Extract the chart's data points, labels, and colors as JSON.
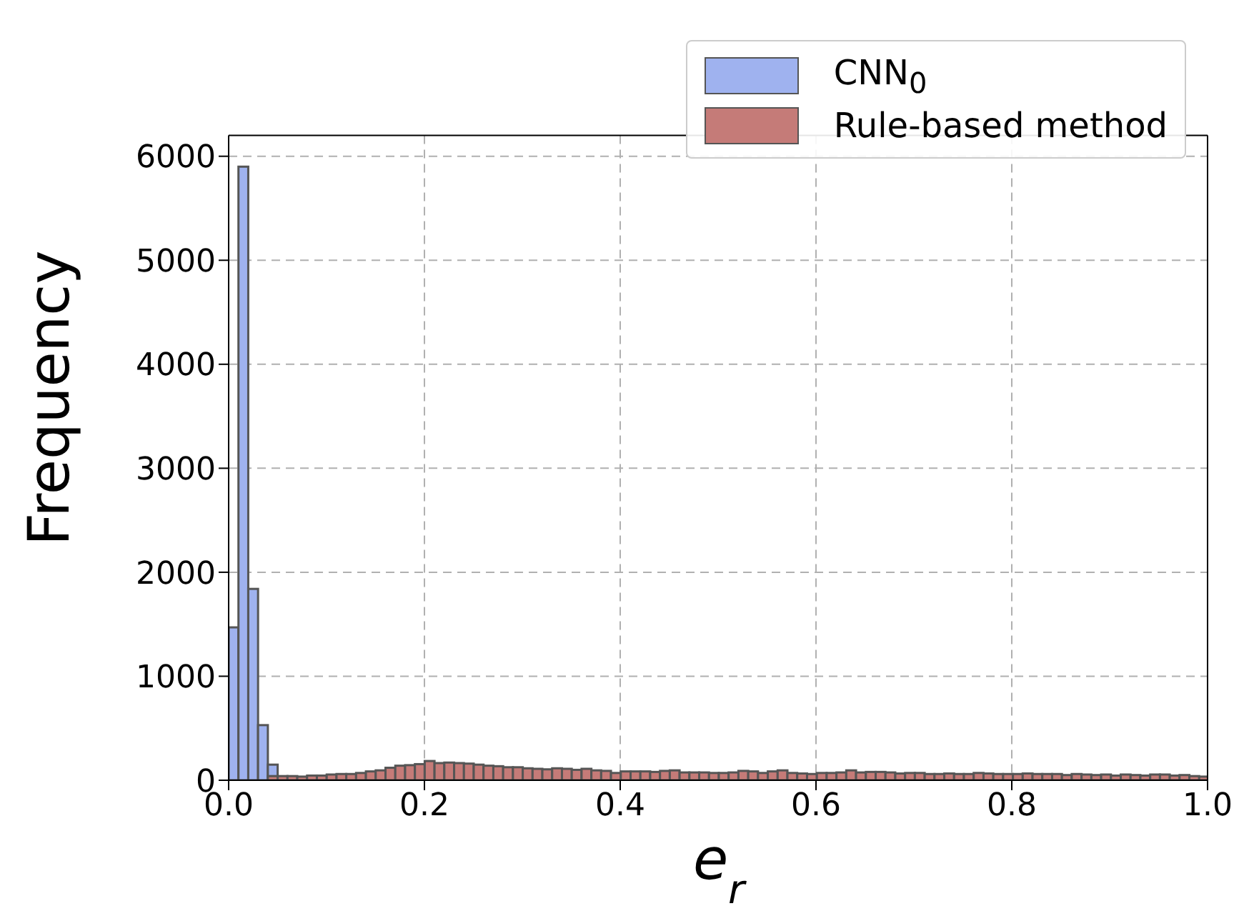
{
  "chart_data": {
    "type": "histogram",
    "xlabel": "e$_{r}$",
    "ylabel": "Frequency",
    "bins": [
      0,
      0.01,
      0.02,
      0.03,
      0.04,
      0.05,
      0.06,
      0.07,
      0.08,
      0.09,
      0.1,
      0.11,
      0.12,
      0.13,
      0.14,
      0.15,
      0.16,
      0.17,
      0.18,
      0.19,
      0.2,
      0.21,
      0.22,
      0.23,
      0.24,
      0.25,
      0.26,
      0.27,
      0.28,
      0.29,
      0.3,
      0.31,
      0.32,
      0.33,
      0.34,
      0.35,
      0.36,
      0.37,
      0.38,
      0.39,
      0.4,
      0.41,
      0.42,
      0.43,
      0.44,
      0.45,
      0.46,
      0.47,
      0.48,
      0.49,
      0.5,
      0.51,
      0.52,
      0.53,
      0.54,
      0.55,
      0.56,
      0.57,
      0.58,
      0.59,
      0.6,
      0.61,
      0.62,
      0.63,
      0.64,
      0.65,
      0.66,
      0.67,
      0.68,
      0.69,
      0.7,
      0.71,
      0.72,
      0.73,
      0.74,
      0.75,
      0.76,
      0.77,
      0.78,
      0.79,
      0.8,
      0.81,
      0.82,
      0.83,
      0.84,
      0.85,
      0.86,
      0.87,
      0.88,
      0.89,
      0.9,
      0.91,
      0.92,
      0.93,
      0.94,
      0.95,
      0.96,
      0.97,
      0.98,
      0.99,
      1
    ],
    "series": [
      {
        "name": "CNN$_{0}$",
        "color": "#9fb2ef",
        "values": [
          1470,
          5900,
          1840,
          530,
          150,
          0,
          0,
          0,
          0,
          0,
          0,
          0,
          0,
          0,
          0,
          0,
          0,
          0,
          0,
          0,
          0,
          0,
          0,
          0,
          0,
          0,
          0,
          0,
          0,
          0,
          0,
          0,
          0,
          0,
          0,
          0,
          0,
          0,
          0,
          0,
          0,
          0,
          0,
          0,
          0,
          0,
          0,
          0,
          0,
          0,
          0,
          0,
          0,
          0,
          0,
          0,
          0,
          0,
          0,
          0,
          0,
          0,
          0,
          0,
          0,
          0,
          0,
          0,
          0,
          0,
          0,
          0,
          0,
          0,
          0,
          0,
          0,
          0,
          0,
          0,
          0,
          0,
          0,
          0,
          0,
          0,
          0,
          0,
          0,
          0,
          0,
          0,
          0,
          0,
          0,
          0,
          0,
          0,
          0,
          0
        ]
      },
      {
        "name": "Rule-based method",
        "color": "#c57b78",
        "values": [
          0,
          0,
          0,
          null,
          40,
          40,
          40,
          35,
          45,
          45,
          55,
          60,
          60,
          70,
          85,
          95,
          120,
          140,
          145,
          155,
          185,
          165,
          170,
          165,
          160,
          150,
          140,
          135,
          125,
          125,
          115,
          110,
          105,
          115,
          110,
          100,
          110,
          95,
          90,
          70,
          85,
          85,
          85,
          80,
          90,
          95,
          75,
          75,
          75,
          70,
          70,
          75,
          90,
          85,
          70,
          85,
          95,
          70,
          65,
          60,
          70,
          70,
          75,
          95,
          75,
          80,
          80,
          75,
          65,
          70,
          70,
          60,
          60,
          65,
          60,
          60,
          70,
          65,
          60,
          60,
          60,
          65,
          60,
          60,
          60,
          50,
          60,
          55,
          50,
          55,
          45,
          55,
          50,
          45,
          55,
          55,
          45,
          50,
          40,
          35
        ]
      }
    ],
    "xlim": [
      0,
      1
    ],
    "xticks": [
      {
        "value": 0,
        "label": "0.0"
      },
      0.2,
      0.4,
      0.6,
      0.8,
      {
        "value": 1,
        "label": "1.0"
      }
    ],
    "ylim": [
      0,
      6200
    ],
    "yticks": [
      0,
      1000,
      2000,
      3000,
      4000,
      5000,
      6000
    ],
    "grid": true,
    "legend": "top right"
  }
}
